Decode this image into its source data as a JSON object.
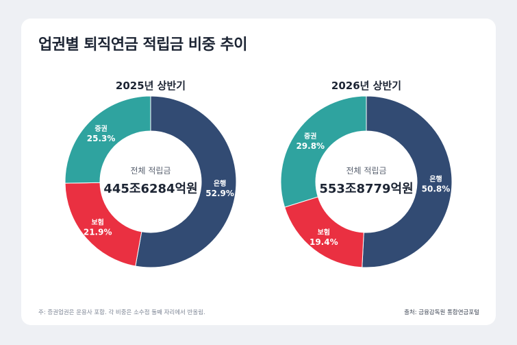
{
  "title": "업권별 퇴직연금 적립금 비중 추이",
  "colors": {
    "은행": "#324b73",
    "보험": "#ea3041",
    "증권": "#2fa39f"
  },
  "chart_data": [
    {
      "type": "pie",
      "title": "2025년 상반기",
      "center_label": "전체 적립금",
      "center_value": "445조6284억원",
      "categories": [
        "은행",
        "보험",
        "증권"
      ],
      "values": [
        52.9,
        21.9,
        25.3
      ],
      "value_labels": [
        "52.9%",
        "21.9%",
        "25.3%"
      ]
    },
    {
      "type": "pie",
      "title": "2026년 상반기",
      "center_label": "전체 적립금",
      "center_value": "553조8779억원",
      "categories": [
        "은행",
        "보험",
        "증권"
      ],
      "values": [
        50.8,
        19.4,
        29.8
      ],
      "value_labels": [
        "50.8%",
        "19.4%",
        "29.8%"
      ]
    }
  ],
  "footnote": "주: 증권업권은 운용사 포함. 각 비중은 소수점 둘째 자리에서 반올림.",
  "source": "출처: 금융감독원 통합연금포털"
}
